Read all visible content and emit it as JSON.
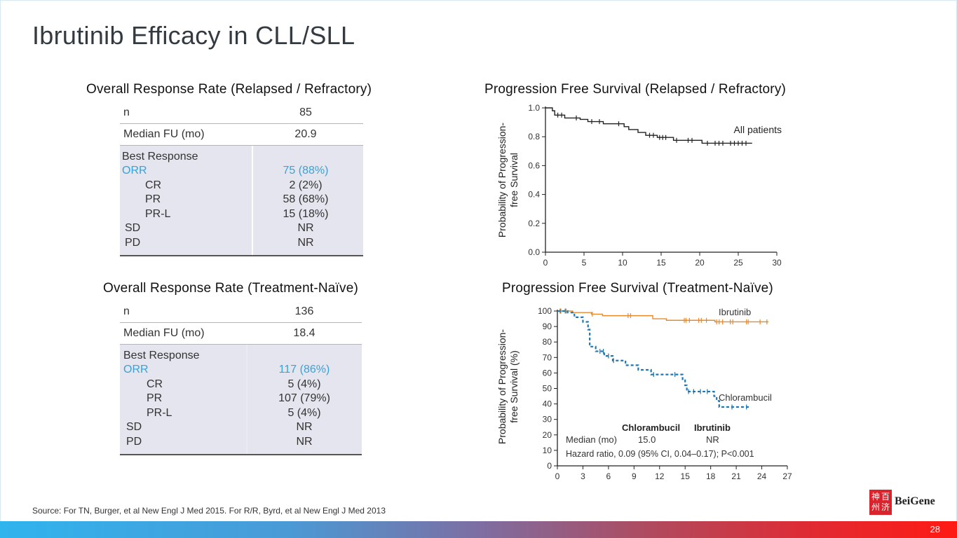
{
  "slide": {
    "title": "Ibrutinib Efficacy in CLL/SLL",
    "source": "Source: For TN, Burger, et al New Engl J Med 2015. For R/R, Byrd, et al New Engl J Med 2013",
    "page_number": "28",
    "brand": "BeiGene",
    "brand_seal_chars": [
      "百",
      "济",
      "神",
      "州"
    ],
    "colors": {
      "accent_blue": "#39a2d6",
      "ibrutinib": "#e8892b",
      "chlorambucil": "#1f77b4",
      "footer_start": "#2fb4ee",
      "footer_end": "#ff1a14"
    }
  },
  "tables": {
    "rr": {
      "title": "Overall Response Rate (Relapsed / Refractory)",
      "rows": [
        {
          "label": "n",
          "value": "85"
        },
        {
          "label": "Median FU (mo)",
          "value": "20.9"
        }
      ],
      "best_response_label": "Best Response",
      "responses": [
        {
          "label": "ORR",
          "value": "75 (88%)"
        },
        {
          "label": "CR",
          "value": "2 (2%)"
        },
        {
          "label": "PR",
          "value": "58 (68%)"
        },
        {
          "label": "PR-L",
          "value": "15 (18%)"
        },
        {
          "label": "SD",
          "value": "NR"
        },
        {
          "label": "PD",
          "value": "NR"
        }
      ]
    },
    "tn": {
      "title": "Overall Response Rate (Treatment-Naïve)",
      "rows": [
        {
          "label": "n",
          "value": "136"
        },
        {
          "label": "Median FU (mo)",
          "value": "18.4"
        }
      ],
      "best_response_label": "Best Response",
      "responses": [
        {
          "label": "ORR",
          "value": "117 (86%)"
        },
        {
          "label": "CR",
          "value": "5 (4%)"
        },
        {
          "label": "PR",
          "value": "107 (79%)"
        },
        {
          "label": "PR-L",
          "value": "5 (4%)"
        },
        {
          "label": "SD",
          "value": "NR"
        },
        {
          "label": "PD",
          "value": "NR"
        }
      ]
    }
  },
  "chart_data": [
    {
      "type": "line",
      "title": "Progression Free Survival (Relapsed / Refractory)",
      "xlabel": "",
      "ylabel": "Probability of Progression-free Survival",
      "xlim": [
        0,
        30
      ],
      "ylim": [
        0,
        1.0
      ],
      "xticks": [
        "0",
        "5",
        "10",
        "15",
        "20",
        "25",
        "30"
      ],
      "yticks": [
        "0.0",
        "0.2",
        "0.4",
        "0.6",
        "0.8",
        "1.0"
      ],
      "grid": false,
      "annotations": [
        "All patients"
      ],
      "series": [
        {
          "name": "All patients",
          "step": true,
          "x": [
            0,
            0.9,
            1.2,
            2.5,
            4.5,
            5.5,
            7.5,
            10.2,
            10.8,
            12.0,
            13.0,
            14.5,
            16.6,
            20.3,
            26.8
          ],
          "y": [
            1.0,
            0.98,
            0.95,
            0.93,
            0.92,
            0.905,
            0.89,
            0.87,
            0.85,
            0.83,
            0.81,
            0.795,
            0.775,
            0.755,
            0.755
          ],
          "censored_x": [
            1.6,
            2.1,
            4.0,
            6.0,
            7.0,
            9.5,
            13.5,
            14.0,
            14.8,
            15.2,
            15.6,
            17.0,
            18.5,
            19.0,
            21.0,
            22.0,
            22.5,
            23.0,
            24.0,
            24.5,
            25.0,
            25.5,
            26.0
          ]
        }
      ]
    },
    {
      "type": "line",
      "title": "Progression Free Survival (Treatment-Naïve)",
      "xlabel": "",
      "ylabel": "Probability of Progression-free Survival (%)",
      "xlim": [
        0,
        27
      ],
      "ylim": [
        0,
        100
      ],
      "xticks": [
        "0",
        "3",
        "6",
        "9",
        "12",
        "15",
        "18",
        "21",
        "24",
        "27"
      ],
      "yticks": [
        "0",
        "10",
        "20",
        "30",
        "40",
        "50",
        "60",
        "70",
        "80",
        "90",
        "100"
      ],
      "grid": false,
      "legend": "inline labels",
      "annotations": {
        "table_headers": [
          "Chlorambucil",
          "Ibrutinib"
        ],
        "median_label": "Median (mo)",
        "median_values": [
          "15.0",
          "NR"
        ],
        "hazard": "Hazard ratio, 0.09 (95% CI, 0.04–0.17); P<0.001"
      },
      "series": [
        {
          "name": "Ibrutinib",
          "step": true,
          "dashed": false,
          "x": [
            0,
            1.8,
            4.0,
            5.3,
            11.2,
            12.8,
            18.5,
            24.8
          ],
          "y": [
            100,
            99,
            98,
            97,
            95,
            94,
            93,
            93
          ],
          "censored_x": [
            0.3,
            0.9,
            4.1,
            8.3,
            8.6,
            14.9,
            15.1,
            15.5,
            16.6,
            16.9,
            17.5,
            18.7,
            19.0,
            19.4,
            20.3,
            20.6,
            22.2,
            22.4,
            23.8,
            24.6
          ]
        },
        {
          "name": "Chlorambucil",
          "step": true,
          "dashed": true,
          "x": [
            0,
            1.2,
            2.0,
            3.0,
            3.6,
            3.8,
            4.5,
            5.5,
            6.5,
            8.0,
            9.5,
            11.0,
            14.7,
            15.0,
            15.2,
            18.4,
            18.7,
            19.0,
            22.5
          ],
          "y": [
            100,
            99,
            96,
            93,
            88,
            77,
            74,
            71,
            68,
            65,
            62,
            59,
            56,
            52,
            48,
            45,
            42,
            38,
            38
          ],
          "censored_x": [
            0.4,
            1.0,
            5.0,
            5.4,
            6.0,
            6.6,
            11.3,
            13.8,
            15.4,
            16.0,
            16.8,
            17.6,
            20.5,
            22.2
          ]
        }
      ]
    }
  ]
}
